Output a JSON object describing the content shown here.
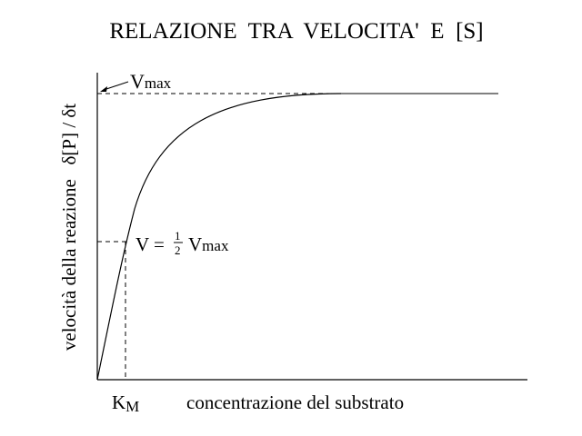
{
  "title": "RELAZIONE  TRA  VELOCITA'  E  [S]",
  "ylabel": "velocità della reazione   δ[P] / δt",
  "xlabel": "concentrazione del substrato",
  "km_label": {
    "main": "K",
    "sub": "M"
  },
  "vmax_label": {
    "main": "V",
    "sub": "max"
  },
  "half_label": {
    "prefix": "V =",
    "num": "1",
    "den": "2",
    "main": "V",
    "sub": "max"
  },
  "colors": {
    "ink": "#000000",
    "background": "#ffffff"
  }
}
